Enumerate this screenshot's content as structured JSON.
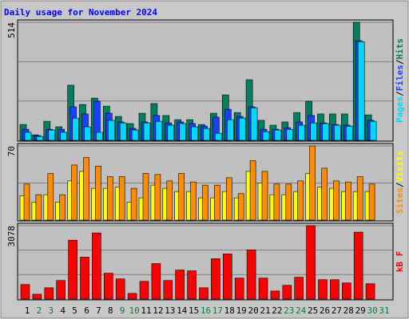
{
  "chart_data": {
    "type": "bar",
    "title": "Daily usage for November 2024",
    "categories": [
      "1",
      "2",
      "3",
      "4",
      "5",
      "6",
      "7",
      "8",
      "9",
      "10",
      "11",
      "12",
      "13",
      "14",
      "15",
      "16",
      "17",
      "18",
      "19",
      "20",
      "21",
      "22",
      "23",
      "24",
      "25",
      "26",
      "27",
      "28",
      "29",
      "30",
      "31"
    ],
    "label_colors": [
      "#000000",
      "#008040",
      "#008040",
      "#000000",
      "#000000",
      "#000000",
      "#000000",
      "#000000",
      "#008040",
      "#008040",
      "#000000",
      "#000000",
      "#000000",
      "#000000",
      "#000000",
      "#008040",
      "#008040",
      "#000000",
      "#000000",
      "#000000",
      "#000000",
      "#000000",
      "#008040",
      "#008040",
      "#000000",
      "#000000",
      "#000000",
      "#000000",
      "#000000",
      "#008040",
      "#008040"
    ],
    "separator": "/",
    "panels": [
      {
        "ylim": [
          0,
          514
        ],
        "yticks": [
          514
        ],
        "grid_divisions": 3,
        "series": [
          {
            "name": "Hits",
            "color": "#008060",
            "values": [
              69,
              24,
              83,
              59,
              240,
              156,
              184,
              149,
              104,
              73,
              118,
              160,
              108,
              90,
              90,
              69,
              118,
              198,
              121,
              264,
              87,
              66,
              80,
              121,
              170,
              115,
              115,
              115,
              514,
              111,
              null
            ]
          },
          {
            "name": "Files",
            "color": "#1a40ff",
            "values": [
              48,
              21,
              48,
              48,
              146,
              115,
              170,
              118,
              80,
              52,
              80,
              108,
              76,
              80,
              73,
              62,
              101,
              135,
              104,
              146,
              48,
              48,
              55,
              80,
              108,
              76,
              69,
              66,
              434,
              87,
              null
            ]
          },
          {
            "name": "Pages",
            "color": "#00d8ff",
            "values": [
              35,
              17,
              45,
              35,
              97,
              59,
              35,
              87,
              76,
              45,
              76,
              83,
              66,
              73,
              59,
              52,
              31,
              90,
              97,
              142,
              38,
              45,
              48,
              66,
              76,
              73,
              66,
              62,
              430,
              83,
              null
            ]
          }
        ]
      },
      {
        "ylim": [
          0,
          70
        ],
        "yticks": [
          70
        ],
        "grid_divisions": 2,
        "series": [
          {
            "name": "Visits",
            "color": "#ffff00",
            "values": [
              23,
              17,
              24,
              17,
              37,
              46,
              30,
              30,
              31,
              17,
              21,
              33,
              30,
              27,
              27,
              21,
              21,
              27,
              21,
              46,
              35,
              24,
              24,
              27,
              44,
              31,
              30,
              27,
              27,
              27,
              null
            ]
          },
          {
            "name": "Sites",
            "color": "#ff8c00",
            "values": [
              34,
              24,
              44,
              24,
              52,
              59,
              51,
              41,
              41,
              30,
              44,
              43,
              37,
              44,
              36,
              33,
              33,
              40,
              25,
              56,
              46,
              34,
              34,
              37,
              70,
              49,
              37,
              36,
              41,
              34,
              null
            ]
          }
        ]
      },
      {
        "ylim": [
          0,
          3078
        ],
        "yticks": [
          3078
        ],
        "grid_divisions": 3,
        "series": [
          {
            "name": "kB F",
            "color": "#ff0000",
            "values": [
              609,
              203,
              473,
              778,
              2469,
              1759,
              2774,
              1082,
              846,
              237,
              744,
              1488,
              778,
              1218,
              1184,
              473,
              1691,
              1894,
              879,
              2063,
              879,
              338,
              575,
              913,
              3078,
              812,
              812,
              676,
              2807,
              643,
              null
            ]
          }
        ]
      }
    ]
  }
}
